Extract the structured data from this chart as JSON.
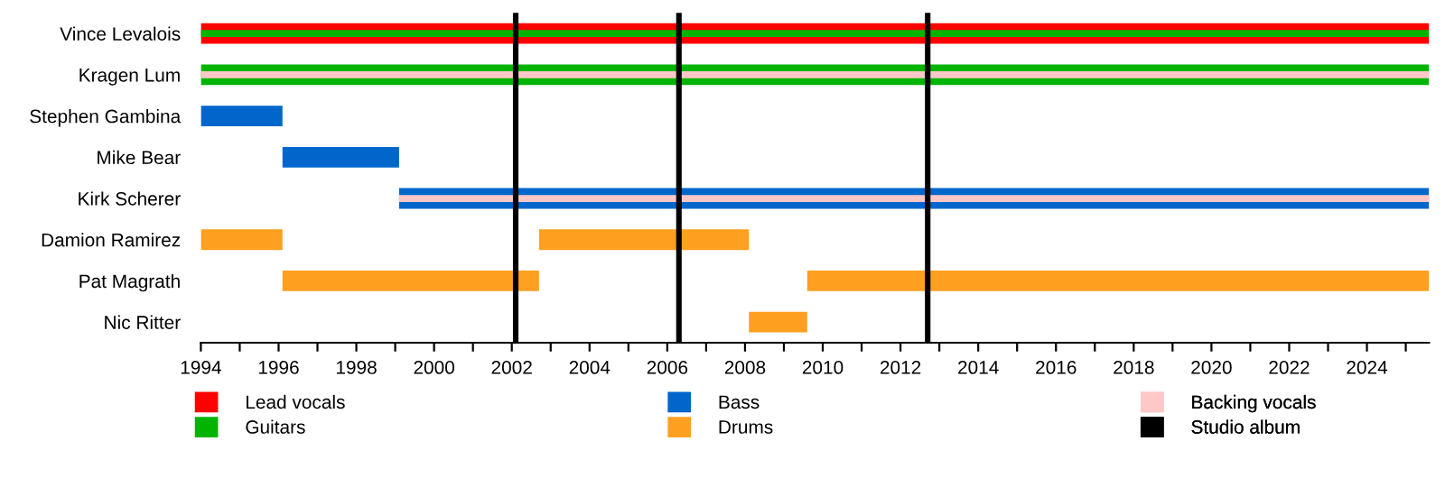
{
  "chart_data": {
    "type": "bar",
    "orientation": "horizontal",
    "categories": [
      "Vince Levalois",
      "Kragen Lum",
      "Stephen Gambina",
      "Mike Bear",
      "Kirk Scherer",
      "Damion Ramirez",
      "Pat Magrath",
      "Nic Ritter"
    ],
    "series": [
      {
        "name": "Lead vocals",
        "color": "#ff0000",
        "values": [
          31.6,
          null,
          null,
          null,
          null,
          null,
          null,
          null
        ],
        "base": [
          1994,
          null,
          null,
          null,
          null,
          null,
          null,
          null
        ]
      },
      {
        "name": "Guitars",
        "color": "#00b400",
        "values": [
          31.6,
          31.6,
          null,
          null,
          null,
          null,
          null,
          null
        ],
        "base": [
          1994,
          1994,
          null,
          null,
          null,
          null,
          null,
          null
        ]
      },
      {
        "name": "Bass",
        "color": "#0066cc",
        "values": [
          null,
          null,
          2.1,
          3.0,
          26.5,
          null,
          null,
          null
        ],
        "base": [
          null,
          null,
          1994,
          1996.1,
          1999.1,
          null,
          null,
          null
        ]
      },
      {
        "name": "Drums",
        "color": "#ffa020",
        "values": [
          null,
          null,
          null,
          null,
          null,
          2.1,
          6.6,
          1.5
        ],
        "base": [
          null,
          null,
          null,
          null,
          null,
          1994,
          1996.1,
          2008.1
        ]
      },
      {
        "color": "#ffa020",
        "values": [
          null,
          null,
          null,
          null,
          null,
          5.4,
          16.0,
          null
        ],
        "base": [
          null,
          null,
          null,
          null,
          null,
          2002.7,
          2009.6,
          null
        ]
      },
      {
        "name": "Backing vocals",
        "color": "#ffc8c8",
        "values": [
          null,
          31.6,
          null,
          null,
          26.5,
          null,
          null,
          null
        ],
        "base": [
          null,
          1994,
          null,
          null,
          1999.1,
          null,
          null,
          null
        ]
      }
    ],
    "xlim": [
      1994,
      2025.6
    ],
    "xticks": [
      1994,
      {
        "value": 1995,
        "label": null
      },
      1996,
      {
        "value": 1997,
        "label": null
      },
      1998,
      {
        "value": 1999,
        "label": null
      },
      2000,
      {
        "value": 2001,
        "label": null
      },
      2002,
      {
        "value": 2003,
        "label": null
      },
      2004,
      {
        "value": 2005,
        "label": null
      },
      2006,
      {
        "value": 2007,
        "label": null
      },
      2008,
      {
        "value": 2009,
        "label": null
      },
      2010,
      {
        "value": 2011,
        "label": null
      },
      2012,
      {
        "value": 2013,
        "label": null
      },
      2014,
      {
        "value": 2015,
        "label": null
      },
      2016,
      {
        "value": 2017,
        "label": null
      },
      2018,
      {
        "value": 2019,
        "label": null
      },
      2020,
      {
        "value": 2021,
        "label": null
      },
      2022,
      {
        "value": 2023,
        "label": null
      },
      2024,
      {
        "value": 2025,
        "label": null
      }
    ],
    "ref_lines": [
      {
        "axis": "x",
        "value": 2002.1,
        "label": "Studio album",
        "color": "#000000"
      },
      {
        "axis": "x",
        "value": 2006.3,
        "color": "#000000"
      },
      {
        "axis": "x",
        "value": 2012.7,
        "color": "#000000"
      }
    ],
    "legend": "bottom",
    "grid": false
  }
}
